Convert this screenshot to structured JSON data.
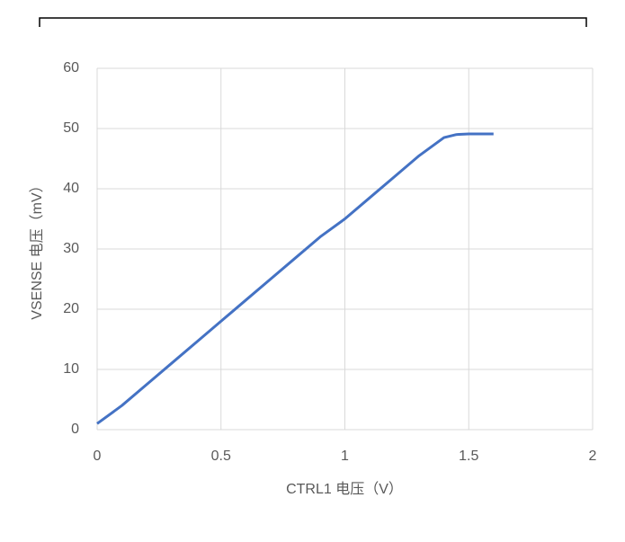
{
  "chart_data": {
    "type": "line",
    "x_label": "CTRL1 电压（V）",
    "y_label": "VSENSE 电压（mV）",
    "series": [
      {
        "name": "VSENSE",
        "color": "#4472c4",
        "x": [
          0,
          0.1,
          0.2,
          0.3,
          0.4,
          0.5,
          0.6,
          0.7,
          0.8,
          0.9,
          1.0,
          1.1,
          1.2,
          1.3,
          1.4,
          1.45,
          1.5,
          1.55,
          1.6
        ],
        "values": [
          1,
          4,
          7.5,
          11,
          14.5,
          18,
          21.5,
          25,
          28.5,
          32,
          35,
          38.5,
          42,
          45.5,
          48.5,
          49,
          49.1,
          49.1,
          49.1
        ]
      }
    ],
    "xlim": [
      0,
      2
    ],
    "xticks": [
      0,
      0.5,
      1,
      1.5,
      2
    ],
    "ylim": [
      0,
      60
    ],
    "yticks": [
      0,
      10,
      20,
      30,
      40,
      50,
      60
    ],
    "grid": true
  }
}
